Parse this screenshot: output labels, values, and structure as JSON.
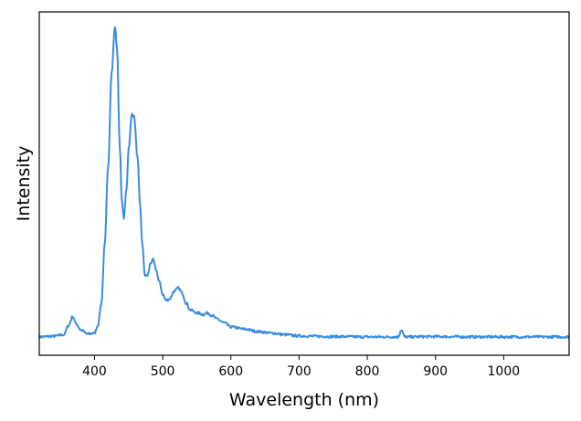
{
  "chart_data": {
    "type": "line",
    "title": "",
    "xlabel": "Wavelength (nm)",
    "ylabel": "Intensity",
    "xlim": [
      319,
      1096
    ],
    "ylim": [
      -0.056,
      1.047
    ],
    "xticks": [
      400,
      500,
      600,
      700,
      800,
      900,
      1000
    ],
    "xtick_labels": [
      "400",
      "500",
      "600",
      "700",
      "800",
      "900",
      "1000"
    ],
    "yticks": [],
    "grid": false,
    "legend": "none",
    "series": [
      {
        "color": "#3b8ddd",
        "x": [
          319,
          340,
          355,
          362,
          368,
          373,
          380,
          390,
          400,
          405,
          410,
          415,
          420,
          425,
          430,
          433,
          437,
          440,
          443,
          447,
          450,
          455,
          458,
          463,
          467,
          470,
          474,
          478,
          482,
          486,
          490,
          495,
          500,
          505,
          510,
          517,
          523,
          528,
          535,
          540,
          550,
          560,
          566,
          572,
          580,
          590,
          600,
          620,
          640,
          660,
          680,
          700,
          750,
          800,
          845,
          850,
          855,
          900,
          950,
          1000,
          1050,
          1096
        ],
        "y": [
          0.003,
          0.005,
          0.01,
          0.04,
          0.068,
          0.045,
          0.025,
          0.012,
          0.015,
          0.04,
          0.11,
          0.3,
          0.55,
          0.85,
          1.0,
          0.93,
          0.62,
          0.44,
          0.385,
          0.48,
          0.61,
          0.72,
          0.71,
          0.58,
          0.42,
          0.3,
          0.2,
          0.2,
          0.24,
          0.25,
          0.22,
          0.18,
          0.14,
          0.12,
          0.125,
          0.15,
          0.16,
          0.145,
          0.11,
          0.09,
          0.08,
          0.075,
          0.08,
          0.072,
          0.06,
          0.048,
          0.035,
          0.028,
          0.02,
          0.015,
          0.01,
          0.006,
          0.004,
          0.003,
          0.003,
          0.025,
          0.003,
          0.004,
          0.003,
          0.003,
          0.003,
          0.003
        ]
      }
    ]
  }
}
